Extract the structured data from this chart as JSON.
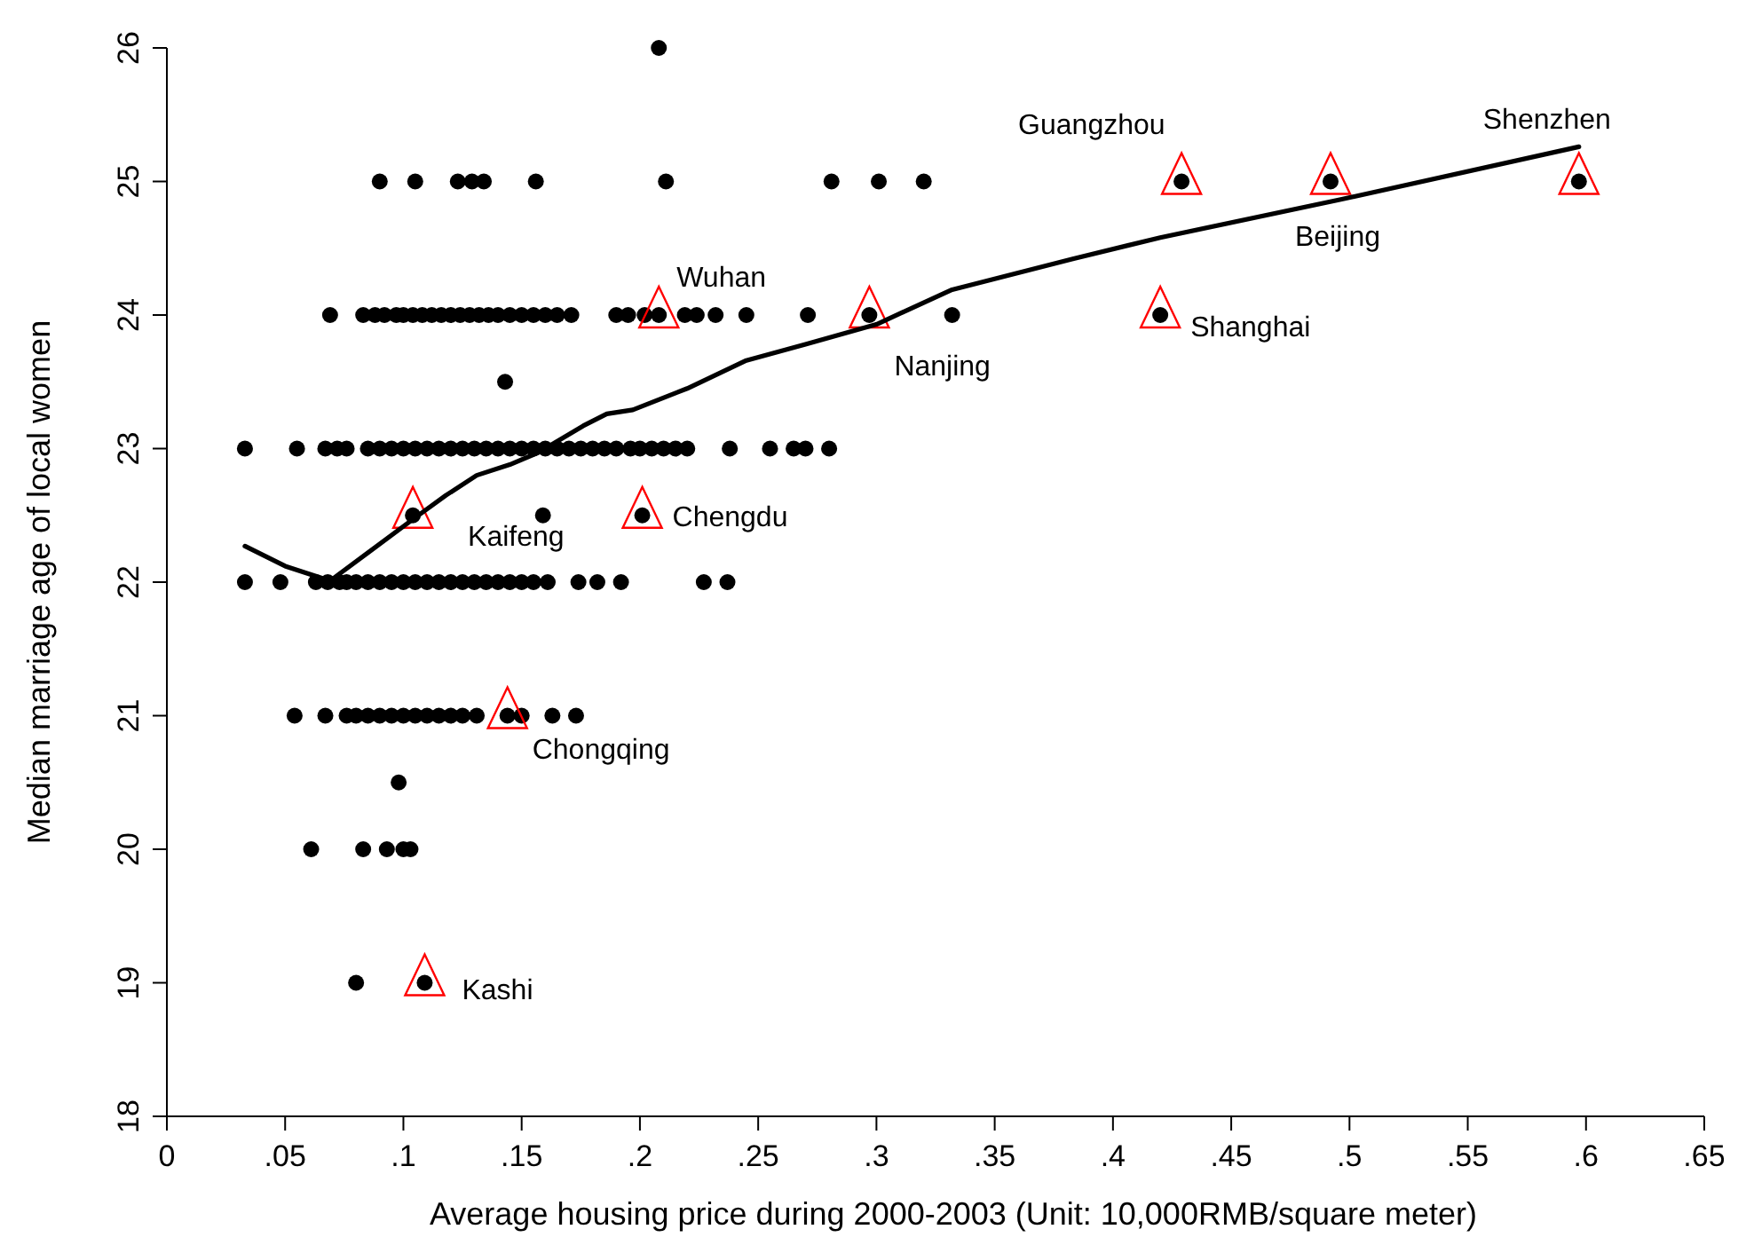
{
  "chart_data": {
    "type": "scatter",
    "xlabel": "Average housing price during 2000-2003 (Unit: 10,000RMB/square meter)",
    "ylabel": "Median marriage age of local women",
    "xlim": [
      0,
      0.65
    ],
    "xticks": [
      {
        "value": 0,
        "label": "0"
      },
      {
        "value": 0.05,
        "label": ".05"
      },
      {
        "value": 0.1,
        "label": ".1"
      },
      {
        "value": 0.15,
        "label": ".15"
      },
      {
        "value": 0.2,
        "label": ".2"
      },
      {
        "value": 0.25,
        "label": ".25"
      },
      {
        "value": 0.3,
        "label": ".3"
      },
      {
        "value": 0.35,
        "label": ".35"
      },
      {
        "value": 0.4,
        "label": ".4"
      },
      {
        "value": 0.45,
        "label": ".45"
      },
      {
        "value": 0.5,
        "label": ".5"
      },
      {
        "value": 0.55,
        "label": ".55"
      },
      {
        "value": 0.6,
        "label": ".6"
      },
      {
        "value": 0.65,
        "label": ".65"
      }
    ],
    "ylim": [
      18,
      26
    ],
    "yticks": [
      18,
      19,
      20,
      21,
      22,
      23,
      24,
      25,
      26
    ],
    "series": [
      {
        "marker": "circle",
        "color": "#000000",
        "x": [
          0.09,
          0.105,
          0.123,
          0.129,
          0.134,
          0.156,
          0.211,
          0.281,
          0.301,
          0.32,
          0.429,
          0.492,
          0.597,
          0.208,
          0.069,
          0.083,
          0.088,
          0.092,
          0.097,
          0.1,
          0.104,
          0.108,
          0.112,
          0.116,
          0.12,
          0.124,
          0.128,
          0.132,
          0.136,
          0.14,
          0.145,
          0.15,
          0.155,
          0.16,
          0.165,
          0.171,
          0.19,
          0.195,
          0.202,
          0.208,
          0.219,
          0.224,
          0.232,
          0.245,
          0.271,
          0.297,
          0.332,
          0.42,
          0.143,
          0.033,
          0.055,
          0.067,
          0.072,
          0.076,
          0.085,
          0.09,
          0.095,
          0.1,
          0.105,
          0.11,
          0.115,
          0.12,
          0.125,
          0.13,
          0.135,
          0.14,
          0.145,
          0.15,
          0.155,
          0.16,
          0.165,
          0.17,
          0.175,
          0.18,
          0.185,
          0.19,
          0.196,
          0.2,
          0.205,
          0.21,
          0.215,
          0.22,
          0.238,
          0.255,
          0.265,
          0.27,
          0.28,
          0.104,
          0.159,
          0.201,
          0.033,
          0.048,
          0.063,
          0.068,
          0.073,
          0.076,
          0.08,
          0.085,
          0.09,
          0.095,
          0.1,
          0.105,
          0.11,
          0.115,
          0.12,
          0.125,
          0.13,
          0.135,
          0.14,
          0.145,
          0.15,
          0.155,
          0.161,
          0.174,
          0.182,
          0.192,
          0.227,
          0.237,
          0.054,
          0.067,
          0.076,
          0.08,
          0.085,
          0.09,
          0.095,
          0.1,
          0.105,
          0.11,
          0.115,
          0.12,
          0.125,
          0.131,
          0.144,
          0.15,
          0.163,
          0.173,
          0.098,
          0.061,
          0.083,
          0.093,
          0.1,
          0.103,
          0.08,
          0.109
        ],
        "values": [
          25,
          25,
          25,
          25,
          25,
          25,
          25,
          25,
          25,
          25,
          25,
          25,
          25,
          26,
          24,
          24,
          24,
          24,
          24,
          24,
          24,
          24,
          24,
          24,
          24,
          24,
          24,
          24,
          24,
          24,
          24,
          24,
          24,
          24,
          24,
          24,
          24,
          24,
          24,
          24,
          24,
          24,
          24,
          24,
          24,
          24,
          24,
          24,
          23.5,
          23,
          23,
          23,
          23,
          23,
          23,
          23,
          23,
          23,
          23,
          23,
          23,
          23,
          23,
          23,
          23,
          23,
          23,
          23,
          23,
          23,
          23,
          23,
          23,
          23,
          23,
          23,
          23,
          23,
          23,
          23,
          23,
          23,
          23,
          23,
          23,
          23,
          23,
          22.5,
          22.5,
          22.5,
          22,
          22,
          22,
          22,
          22,
          22,
          22,
          22,
          22,
          22,
          22,
          22,
          22,
          22,
          22,
          22,
          22,
          22,
          22,
          22,
          22,
          22,
          22,
          22,
          22,
          22,
          22,
          22,
          21,
          21,
          21,
          21,
          21,
          21,
          21,
          21,
          21,
          21,
          21,
          21,
          21,
          21,
          21,
          21,
          21,
          21,
          20.5,
          20,
          20,
          20,
          20,
          20,
          19,
          19
        ]
      },
      {
        "marker": "triangle",
        "color": "#ff0000",
        "x": [
          0.429,
          0.597,
          0.208,
          0.492,
          0.297,
          0.42,
          0.104,
          0.201,
          0.144,
          0.109
        ],
        "values": [
          25,
          25,
          24,
          25,
          24,
          24,
          22.5,
          22.5,
          21,
          19
        ]
      },
      {
        "type": "line",
        "marker": "none",
        "line_style": "solid",
        "color": "#000000",
        "x": [
          0.033,
          0.05,
          0.069,
          0.085,
          0.104,
          0.118,
          0.131,
          0.145,
          0.157,
          0.176,
          0.186,
          0.197,
          0.22,
          0.245,
          0.27,
          0.3,
          0.332,
          0.383,
          0.42,
          0.495,
          0.597
        ],
        "values": [
          22.27,
          22.12,
          22.01,
          22.22,
          22.47,
          22.65,
          22.8,
          22.88,
          22.97,
          23.17,
          23.26,
          23.29,
          23.45,
          23.66,
          23.78,
          23.93,
          24.19,
          24.42,
          24.58,
          24.86,
          25.26
        ]
      }
    ],
    "annotations": [
      {
        "text": "Guangzhou",
        "x": 0.429,
        "y": 25
      },
      {
        "text": "Shenzhen",
        "x": 0.597,
        "y": 25
      },
      {
        "text": "Wuhan",
        "x": 0.208,
        "y": 24
      },
      {
        "text": "Beijing",
        "x": 0.492,
        "y": 25
      },
      {
        "text": "Nanjing",
        "x": 0.297,
        "y": 24
      },
      {
        "text": "Shanghai",
        "x": 0.42,
        "y": 24
      },
      {
        "text": "Kaifeng",
        "x": 0.104,
        "y": 22.5
      },
      {
        "text": "Chengdu",
        "x": 0.201,
        "y": 22.5
      },
      {
        "text": "Chongqing",
        "x": 0.144,
        "y": 21
      },
      {
        "text": "Kashi",
        "x": 0.109,
        "y": 19
      }
    ]
  }
}
